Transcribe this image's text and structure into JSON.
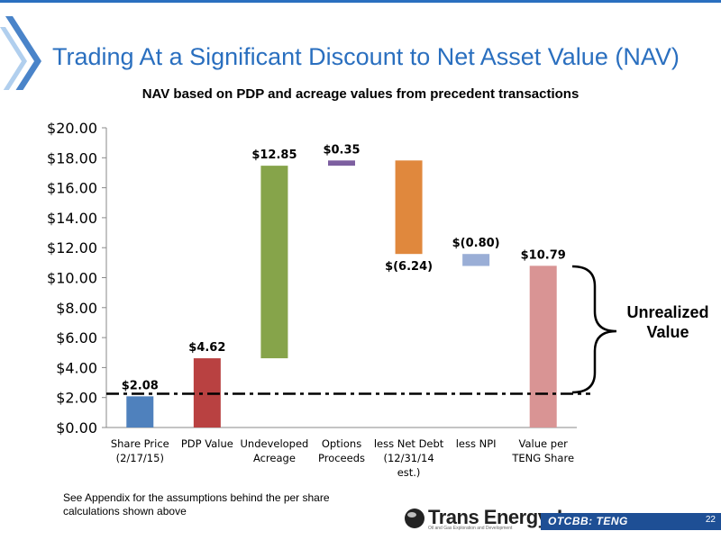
{
  "slide": {
    "title": "Trading At a Significant Discount to Net Asset Value (NAV)",
    "subtitle": "NAV based on PDP and acreage values from precedent transactions",
    "footnote": "See Appendix for the assumptions behind the per share calculations shown above",
    "annotation": "Unrealized Value",
    "logo_text": "Trans Energy, Inc.",
    "logo_tagline": "Oil and Gas Exploration and Development",
    "ticker": "OTCBB: TENG",
    "page_number": "22",
    "accent_color": "#2a6fbf"
  },
  "chart_data": {
    "type": "bar",
    "subtype": "waterfall",
    "categories": [
      "Share Price (2/17/15)",
      "PDP Value",
      "Undeveloped Acreage",
      "Options Proceeds",
      "less Net Debt (12/31/14 est.)",
      "less NPI",
      "Value per TENG Share"
    ],
    "bars": [
      {
        "label": "$2.08",
        "base": 0,
        "top": 2.08,
        "color": "#4f81bd"
      },
      {
        "label": "$4.62",
        "base": 0,
        "top": 4.62,
        "color": "#b94141"
      },
      {
        "label": "$12.85",
        "base": 4.62,
        "top": 17.47,
        "color": "#86a44a"
      },
      {
        "label": "$0.35",
        "base": 17.47,
        "top": 17.82,
        "color": "#7d5fa0"
      },
      {
        "label": "$(6.24)",
        "base": 11.58,
        "top": 17.82,
        "color": "#e0883d"
      },
      {
        "label": "$(0.80)",
        "base": 10.78,
        "top": 11.58,
        "color": "#9aaed6"
      },
      {
        "label": "$10.79",
        "base": 0,
        "top": 10.79,
        "color": "#d99494"
      }
    ],
    "label_positions": [
      "above",
      "above",
      "above",
      "above",
      "below",
      "above",
      "above"
    ],
    "reference_line": 2.25,
    "ylim": [
      0,
      20
    ],
    "yticks": [
      "$0.00",
      "$2.00",
      "$4.00",
      "$6.00",
      "$8.00",
      "$10.00",
      "$12.00",
      "$14.00",
      "$16.00",
      "$18.00",
      "$20.00"
    ],
    "ytick_values": [
      0,
      2,
      4,
      6,
      8,
      10,
      12,
      14,
      16,
      18,
      20
    ],
    "grid": false,
    "legend": "none"
  }
}
